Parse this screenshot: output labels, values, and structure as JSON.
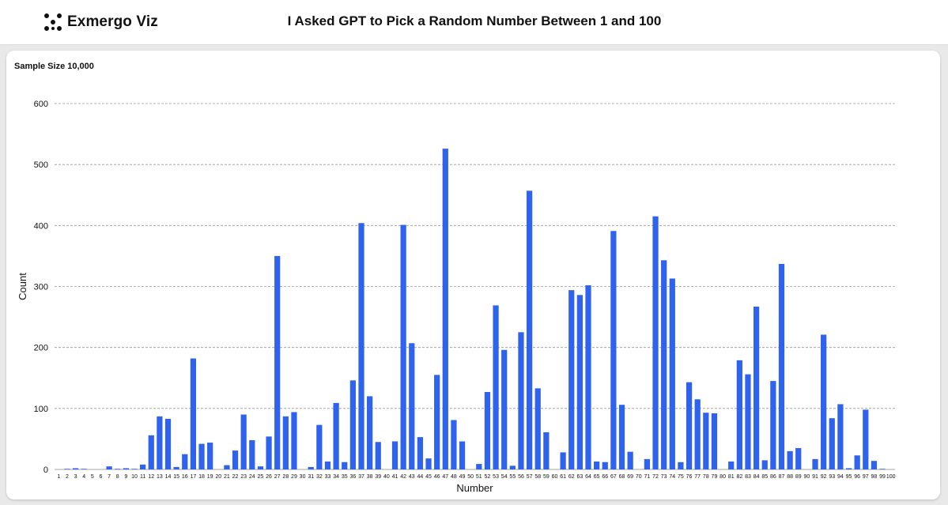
{
  "header": {
    "brand": "Exmergo Viz",
    "title": "I Asked GPT to Pick a Random Number Between 1 and 100"
  },
  "card": {
    "sample_label": "Sample Size 10,000"
  },
  "colors": {
    "bar": "#2f63ee",
    "grid": "#9a9a9a",
    "text": "#111111"
  },
  "icons": {
    "logo": "dots-grid-icon"
  },
  "chart_data": {
    "type": "bar",
    "xlabel": "Number",
    "ylabel": "Count",
    "ylim": [
      0,
      600
    ],
    "yticks": [
      0,
      100,
      200,
      300,
      400,
      500,
      600
    ],
    "grid": true,
    "categories": [
      "1",
      "2",
      "3",
      "4",
      "5",
      "6",
      "7",
      "8",
      "9",
      "10",
      "11",
      "12",
      "13",
      "14",
      "15",
      "16",
      "17",
      "18",
      "19",
      "20",
      "21",
      "22",
      "23",
      "24",
      "25",
      "26",
      "27",
      "28",
      "29",
      "30",
      "31",
      "32",
      "33",
      "34",
      "35",
      "36",
      "37",
      "38",
      "39",
      "40",
      "41",
      "42",
      "43",
      "44",
      "45",
      "46",
      "47",
      "48",
      "49",
      "50",
      "51",
      "52",
      "53",
      "54",
      "55",
      "56",
      "57",
      "58",
      "59",
      "60",
      "61",
      "62",
      "63",
      "64",
      "65",
      "66",
      "67",
      "68",
      "69",
      "70",
      "71",
      "72",
      "73",
      "74",
      "75",
      "76",
      "77",
      "78",
      "79",
      "80",
      "81",
      "82",
      "83",
      "84",
      "85",
      "86",
      "87",
      "88",
      "89",
      "90",
      "91",
      "92",
      "93",
      "94",
      "95",
      "96",
      "97",
      "98",
      "99",
      "100"
    ],
    "values": [
      0,
      1,
      2,
      1,
      0,
      0,
      5,
      1,
      2,
      1,
      8,
      56,
      87,
      83,
      4,
      25,
      182,
      42,
      44,
      0,
      7,
      31,
      90,
      48,
      5,
      54,
      350,
      87,
      94,
      0,
      4,
      73,
      13,
      109,
      12,
      146,
      404,
      120,
      45,
      0,
      46,
      401,
      207,
      53,
      18,
      155,
      526,
      81,
      46,
      0,
      9,
      127,
      269,
      196,
      6,
      225,
      457,
      133,
      61,
      0,
      28,
      294,
      286,
      302,
      13,
      12,
      391,
      106,
      29,
      0,
      17,
      415,
      343,
      313,
      12,
      143,
      115,
      93,
      92,
      0,
      13,
      179,
      156,
      267,
      15,
      145,
      337,
      30,
      35,
      0,
      17,
      221,
      84,
      107,
      2,
      23,
      98,
      14,
      1,
      0
    ]
  }
}
